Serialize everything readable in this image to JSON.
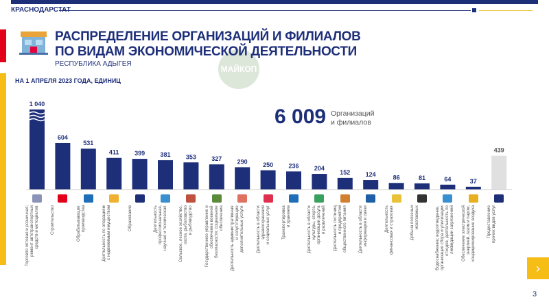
{
  "header": {
    "organization": "КРАСНОДАРСТАТ",
    "title_line1": "РАСПРЕДЕЛЕНИЕ ОРГАНИЗАЦИЙ И ФИЛИАЛОВ",
    "title_line2": "ПО ВИДАМ ЭКОНОМИЧЕСКОЙ ДЕЯТЕЛЬНОСТИ",
    "subtitle": "РЕСПУБЛИКА АДЫГЕЯ",
    "date_units": "НА 1 АПРЕЛЯ 2023 ГОДА, ЕДИНИЦ",
    "watermark": "МАЙКОП"
  },
  "total": {
    "value": "6 009",
    "label": "Организаций\nи филиалов"
  },
  "colors": {
    "bar": "#1e2f7a",
    "other_bar": "#e0e0e0",
    "accent_red": "#e3001b",
    "accent_yellow": "#f7bd17"
  },
  "chart_data": {
    "type": "bar",
    "title": "РАСПРЕДЕЛЕНИЕ ОРГАНИЗАЦИЙ И ФИЛИАЛОВ ПО ВИДАМ ЭКОНОМИЧЕСКОЙ ДЕЯТЕЛЬНОСТИ",
    "value_labels": [
      "1 040",
      "604",
      "531",
      "411",
      "399",
      "381",
      "353",
      "327",
      "290",
      "250",
      "236",
      "204",
      "152",
      "124",
      "86",
      "81",
      "64",
      "37",
      "439"
    ],
    "categories": [
      "Торговля оптовая и розничная;\nремонт автотранспортных\nсредств и мотоциклов",
      "Строительство",
      "Обрабатывающие\nпроизводства",
      "Деятельность по операциям\nс недвижимым имуществом",
      "Образование",
      "Деятельность\nпрофессиональная,\nнаучная и техническая",
      "Сельское, лесное хозяйство,\nохота, рыболовство\nи рыбоводство",
      "Государственное управление и\nобеспечение военной\nбезопасности; социальное\nобеспечение",
      "Деятельность административная\nи сопутствующие\nдополнительные услуги",
      "Деятельность в области\nздравоохранения\nи социальных услуг",
      "Транспортировка\nи хранение",
      "Деятельность в области\nкультуры, спорта,\nорганизации досуга\nи развлечений",
      "Деятельность гостиниц\nи предприятий\nобщественного питания",
      "Деятельность в области\nинформации и связи",
      "Деятельность\nфинансовая и страховая",
      "Добыча полезных\nископаемых",
      "Водоснабжение; водоотведение,\nорганизация сбора и утилизации\nотходов, деятельность по\nликвидации загрязнений",
      "Обеспечение электрической\nэнергией, газом и паром;\nкондиционирование воздуха",
      "Предоставление\nпрочих видов услуг"
    ],
    "values": [
      1040,
      604,
      531,
      411,
      399,
      381,
      353,
      327,
      290,
      250,
      236,
      204,
      152,
      124,
      86,
      81,
      64,
      37,
      439
    ],
    "axis_broken_bar": "1 040",
    "grid": false,
    "legend": "none"
  },
  "icons": [
    "car-icon",
    "construction-icon",
    "tools-icon",
    "house-icon",
    "graduation-cap-icon",
    "microscope-icon",
    "agriculture-icon",
    "tank-icon",
    "office-icon",
    "health-icon",
    "truck-icon",
    "culture-icon",
    "food-icon",
    "computer-icon",
    "finance-icon",
    "mining-icon",
    "water-pipe-icon",
    "lightbulb-icon",
    "person-icon"
  ],
  "footer": {
    "next": "›",
    "page": "3"
  }
}
